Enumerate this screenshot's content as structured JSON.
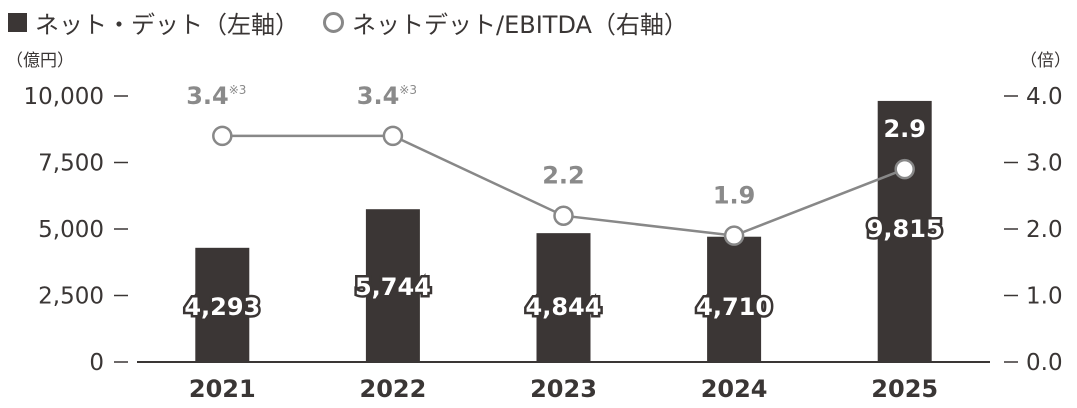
{
  "legend": {
    "bars_label": "ネット・デット（左軸）",
    "line_label": "ネットデット/EBITDA（右軸）"
  },
  "units": {
    "left": "（億円）",
    "right": "（倍）"
  },
  "colors": {
    "bar": "#3b3635",
    "line": "#888888",
    "text": "#3a3635",
    "ratio_label": "#8a8a8a"
  },
  "chart_data": {
    "type": "bar",
    "categories": [
      "2021",
      "2022",
      "2023",
      "2024",
      "2025"
    ],
    "series": [
      {
        "name": "ネット・デット（左軸）",
        "axis": "left",
        "type": "bar",
        "values": [
          4293,
          5744,
          4844,
          4710,
          9815
        ],
        "labels": [
          "4,293",
          "5,744",
          "4,844",
          "4,710",
          "9,815"
        ]
      },
      {
        "name": "ネットデット/EBITDA（右軸）",
        "axis": "right",
        "type": "line",
        "values": [
          3.4,
          3.4,
          2.2,
          1.9,
          2.9
        ],
        "labels": [
          "3.4",
          "3.4",
          "2.2",
          "1.9",
          "2.9"
        ],
        "notes": [
          "※3",
          "※3",
          "",
          "",
          ""
        ]
      }
    ],
    "left_axis": {
      "range": [
        0,
        10000
      ],
      "ticks": [
        "0",
        "2,500",
        "5,000",
        "7,500",
        "10,000"
      ],
      "tick_values": [
        0,
        2500,
        5000,
        7500,
        10000
      ]
    },
    "right_axis": {
      "range": [
        0,
        4.0
      ],
      "ticks": [
        "0.0",
        "1.0",
        "2.0",
        "3.0",
        "4.0"
      ],
      "tick_values": [
        0,
        1,
        2,
        3,
        4
      ]
    },
    "grid": false,
    "legend_position": "top-left"
  }
}
